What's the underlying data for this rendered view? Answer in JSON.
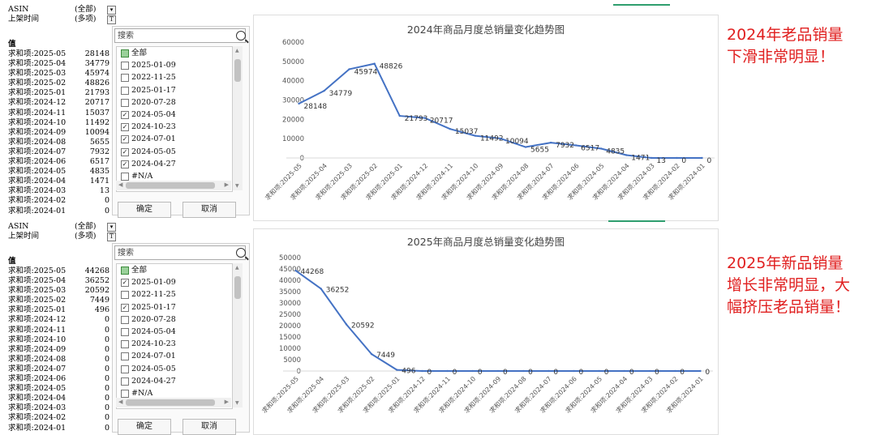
{
  "top": {
    "pivot": {
      "filters": [
        {
          "key": "ASIN",
          "value": "(全部)",
          "button": "▾"
        },
        {
          "key": "上架时间",
          "value": "(多项)",
          "button": "T"
        }
      ],
      "header": "值",
      "rows": [
        {
          "label": "求和项:2025-05",
          "value": "28148"
        },
        {
          "label": "求和项:2025-04",
          "value": "34779"
        },
        {
          "label": "求和项:2025-03",
          "value": "45974"
        },
        {
          "label": "求和项:2025-02",
          "value": "48826"
        },
        {
          "label": "求和项:2025-01",
          "value": "21793"
        },
        {
          "label": "求和项:2024-12",
          "value": "20717"
        },
        {
          "label": "求和项:2024-11",
          "value": "15037"
        },
        {
          "label": "求和项:2024-10",
          "value": "11492"
        },
        {
          "label": "求和项:2024-09",
          "value": "10094"
        },
        {
          "label": "求和项:2024-08",
          "value": "5655"
        },
        {
          "label": "求和项:2024-07",
          "value": "7932"
        },
        {
          "label": "求和项:2024-06",
          "value": "6517"
        },
        {
          "label": "求和项:2024-05",
          "value": "4835"
        },
        {
          "label": "求和项:2024-04",
          "value": "1471"
        },
        {
          "label": "求和项:2024-03",
          "value": "13"
        },
        {
          "label": "求和项:2024-02",
          "value": "0"
        },
        {
          "label": "求和项:2024-01",
          "value": "0"
        }
      ]
    },
    "filter": {
      "search_placeholder": "搜索",
      "items": [
        {
          "label": "全部",
          "state": "mixed"
        },
        {
          "label": "2025-01-09",
          "state": "unchecked"
        },
        {
          "label": "2022-11-25",
          "state": "unchecked"
        },
        {
          "label": "2025-01-17",
          "state": "unchecked"
        },
        {
          "label": "2020-07-28",
          "state": "unchecked"
        },
        {
          "label": "2024-05-04",
          "state": "checked"
        },
        {
          "label": "2024-10-23",
          "state": "checked"
        },
        {
          "label": "2024-07-01",
          "state": "checked"
        },
        {
          "label": "2024-05-05",
          "state": "checked"
        },
        {
          "label": "2024-04-27",
          "state": "checked"
        },
        {
          "label": "#N/A",
          "state": "unchecked"
        }
      ],
      "ok_label": "确定",
      "cancel_label": "取消"
    },
    "annotation": [
      "2024年老品销量",
      "下滑非常明显！"
    ]
  },
  "bottom": {
    "pivot": {
      "filters": [
        {
          "key": "ASIN",
          "value": "(全部)",
          "button": "▾"
        },
        {
          "key": "上架时间",
          "value": "(多项)",
          "button": "T"
        }
      ],
      "header": "值",
      "rows": [
        {
          "label": "求和项:2025-05",
          "value": "44268"
        },
        {
          "label": "求和项:2025-04",
          "value": "36252"
        },
        {
          "label": "求和项:2025-03",
          "value": "20592"
        },
        {
          "label": "求和项:2025-02",
          "value": "7449"
        },
        {
          "label": "求和项:2025-01",
          "value": "496"
        },
        {
          "label": "求和项:2024-12",
          "value": "0"
        },
        {
          "label": "求和项:2024-11",
          "value": "0"
        },
        {
          "label": "求和项:2024-10",
          "value": "0"
        },
        {
          "label": "求和项:2024-09",
          "value": "0"
        },
        {
          "label": "求和项:2024-08",
          "value": "0"
        },
        {
          "label": "求和项:2024-07",
          "value": "0"
        },
        {
          "label": "求和项:2024-06",
          "value": "0"
        },
        {
          "label": "求和项:2024-05",
          "value": "0"
        },
        {
          "label": "求和项:2024-04",
          "value": "0"
        },
        {
          "label": "求和项:2024-03",
          "value": "0"
        },
        {
          "label": "求和项:2024-02",
          "value": "0"
        },
        {
          "label": "求和项:2024-01",
          "value": "0"
        }
      ]
    },
    "filter": {
      "search_placeholder": "搜索",
      "items": [
        {
          "label": "全部",
          "state": "mixed"
        },
        {
          "label": "2025-01-09",
          "state": "checked"
        },
        {
          "label": "2022-11-25",
          "state": "unchecked"
        },
        {
          "label": "2025-01-17",
          "state": "checked"
        },
        {
          "label": "2020-07-28",
          "state": "unchecked"
        },
        {
          "label": "2024-05-04",
          "state": "unchecked"
        },
        {
          "label": "2024-10-23",
          "state": "unchecked"
        },
        {
          "label": "2024-07-01",
          "state": "unchecked"
        },
        {
          "label": "2024-05-05",
          "state": "unchecked"
        },
        {
          "label": "2024-04-27",
          "state": "unchecked"
        },
        {
          "label": "#N/A",
          "state": "unchecked"
        }
      ],
      "ok_label": "确定",
      "cancel_label": "取消"
    },
    "annotation": [
      "2025年新品销量",
      "增长非常明显，大",
      "幅挤压老品销量！"
    ]
  },
  "chart_data": [
    {
      "type": "line",
      "title": "2024年商品月度总销量变化趋势图",
      "categories": [
        "求和项:2025-05",
        "求和项:2025-04",
        "求和项:2025-03",
        "求和项:2025-02",
        "求和项:2025-01",
        "求和项:2024-12",
        "求和项:2024-11",
        "求和项:2024-10",
        "求和项:2024-09",
        "求和项:2024-08",
        "求和项:2024-07",
        "求和项:2024-06",
        "求和项:2024-05",
        "求和项:2024-04",
        "求和项:2024-03",
        "求和项:2024-02",
        "求和项:2024-01"
      ],
      "values": [
        28148,
        34779,
        45974,
        48826,
        21793,
        20717,
        15037,
        11492,
        10094,
        5655,
        7932,
        6517,
        4835,
        1471,
        13,
        0,
        0
      ],
      "yticks": [
        0,
        10000,
        20000,
        30000,
        40000,
        50000,
        60000
      ],
      "ylim": [
        0,
        60000
      ],
      "line_color": "#4472c4",
      "grid": false
    },
    {
      "type": "line",
      "title": "2025年商品月度总销量变化趋势图",
      "categories": [
        "求和项:2025-05",
        "求和项:2025-04",
        "求和项:2025-03",
        "求和项:2025-02",
        "求和项:2025-01",
        "求和项:2024-12",
        "求和项:2024-11",
        "求和项:2024-10",
        "求和项:2024-09",
        "求和项:2024-08",
        "求和项:2024-07",
        "求和项:2024-06",
        "求和项:2024-05",
        "求和项:2024-04",
        "求和项:2024-03",
        "求和项:2024-02",
        "求和项:2024-01"
      ],
      "values": [
        44268,
        36252,
        20592,
        7449,
        496,
        0,
        0,
        0,
        0,
        0,
        0,
        0,
        0,
        0,
        0,
        0,
        0
      ],
      "yticks": [
        0,
        5000,
        10000,
        15000,
        20000,
        25000,
        30000,
        35000,
        40000,
        45000,
        50000
      ],
      "ylim": [
        0,
        50000
      ],
      "line_color": "#4472c4",
      "grid": false
    }
  ]
}
